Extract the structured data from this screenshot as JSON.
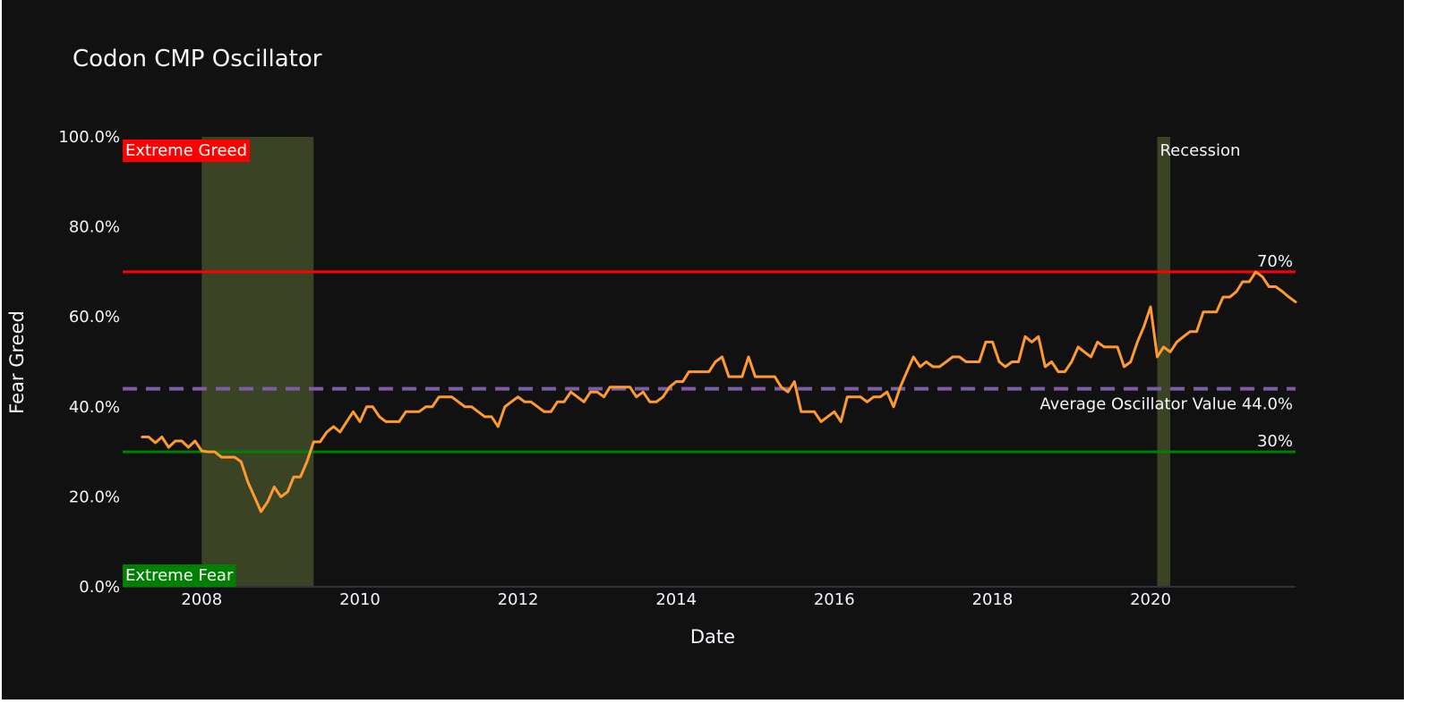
{
  "chart_data": {
    "type": "line",
    "title": "Codon CMP Oscillator",
    "xlabel": "Date",
    "ylabel": "Fear Greed",
    "x_range": [
      "2007-01-01",
      "2021-11-01"
    ],
    "ylim": [
      0,
      100
    ],
    "y_ticks": [
      0,
      20,
      40,
      60,
      80,
      100
    ],
    "y_tick_labels": [
      "0.0%",
      "20.0%",
      "40.0%",
      "60.0%",
      "80.0%",
      "100.0%"
    ],
    "x_ticks": [
      "2008-01-01",
      "2010-01-01",
      "2012-01-01",
      "2014-01-01",
      "2016-01-01",
      "2018-01-01",
      "2020-01-01"
    ],
    "x_tick_labels": [
      "2008",
      "2010",
      "2012",
      "2014",
      "2016",
      "2018",
      "2020"
    ],
    "grid": false,
    "series": [
      {
        "color": "#ff9a2e",
        "x": [
          "2007-04-01",
          "2007-05-01",
          "2007-06-01",
          "2007-07-01",
          "2007-08-01",
          "2007-09-01",
          "2007-10-01",
          "2007-11-01",
          "2007-12-01",
          "2008-01-01",
          "2008-02-01",
          "2008-03-01",
          "2008-04-01",
          "2008-05-01",
          "2008-06-01",
          "2008-07-01",
          "2008-08-01",
          "2008-09-01",
          "2008-10-01",
          "2008-11-01",
          "2008-12-01",
          "2009-01-01",
          "2009-02-01",
          "2009-03-01",
          "2009-04-01",
          "2009-05-01",
          "2009-06-01",
          "2009-07-01",
          "2009-08-01",
          "2009-09-01",
          "2009-10-01",
          "2009-11-01",
          "2009-12-01",
          "2010-01-01",
          "2010-02-01",
          "2010-03-01",
          "2010-04-01",
          "2010-05-01",
          "2010-06-01",
          "2010-07-01",
          "2010-08-01",
          "2010-09-01",
          "2010-10-01",
          "2010-11-01",
          "2010-12-01",
          "2011-01-01",
          "2011-02-01",
          "2011-03-01",
          "2011-04-01",
          "2011-05-01",
          "2011-06-01",
          "2011-07-01",
          "2011-08-01",
          "2011-09-01",
          "2011-10-01",
          "2011-11-01",
          "2011-12-01",
          "2012-01-01",
          "2012-02-01",
          "2012-03-01",
          "2012-04-01",
          "2012-05-01",
          "2012-06-01",
          "2012-07-01",
          "2012-08-01",
          "2012-09-01",
          "2012-10-01",
          "2012-11-01",
          "2012-12-01",
          "2013-01-01",
          "2013-02-01",
          "2013-03-01",
          "2013-04-01",
          "2013-05-01",
          "2013-06-01",
          "2013-07-01",
          "2013-08-01",
          "2013-09-01",
          "2013-10-01",
          "2013-11-01",
          "2013-12-01",
          "2014-01-01",
          "2014-02-01",
          "2014-03-01",
          "2014-04-01",
          "2014-05-01",
          "2014-06-01",
          "2014-07-01",
          "2014-08-01",
          "2014-09-01",
          "2014-10-01",
          "2014-11-01",
          "2014-12-01",
          "2015-01-01",
          "2015-02-01",
          "2015-03-01",
          "2015-04-01",
          "2015-05-01",
          "2015-06-01",
          "2015-07-01",
          "2015-08-01",
          "2015-09-01",
          "2015-10-01",
          "2015-11-01",
          "2015-12-01",
          "2016-01-01",
          "2016-02-01",
          "2016-03-01",
          "2016-04-01",
          "2016-05-01",
          "2016-06-01",
          "2016-07-01",
          "2016-08-01",
          "2016-09-01",
          "2016-10-01",
          "2016-11-01",
          "2016-12-01",
          "2017-01-01",
          "2017-02-01",
          "2017-03-01",
          "2017-04-01",
          "2017-05-01",
          "2017-06-01",
          "2017-07-01",
          "2017-08-01",
          "2017-09-01",
          "2017-10-01",
          "2017-11-01",
          "2017-12-01",
          "2018-01-01",
          "2018-02-01",
          "2018-03-01",
          "2018-04-01",
          "2018-05-01",
          "2018-06-01",
          "2018-07-01",
          "2018-08-01",
          "2018-09-01",
          "2018-10-01",
          "2018-11-01",
          "2018-12-01",
          "2019-01-01",
          "2019-02-01",
          "2019-03-01",
          "2019-04-01",
          "2019-05-01",
          "2019-06-01",
          "2019-07-01",
          "2019-08-01",
          "2019-09-01",
          "2019-10-01",
          "2019-11-01",
          "2019-12-01",
          "2020-01-01",
          "2020-02-01",
          "2020-03-01",
          "2020-04-01",
          "2020-05-01",
          "2020-06-01",
          "2020-07-01",
          "2020-08-01",
          "2020-09-01",
          "2020-10-01",
          "2020-11-01",
          "2020-12-01",
          "2021-01-01",
          "2021-02-01",
          "2021-03-01",
          "2021-04-01",
          "2021-05-01",
          "2021-06-01",
          "2021-07-01",
          "2021-08-01",
          "2021-09-01",
          "2021-10-01",
          "2021-11-01"
        ],
        "y": [
          33.3,
          33.3,
          32.0,
          33.3,
          31.0,
          32.4,
          32.4,
          31.0,
          32.4,
          30.2,
          30.0,
          30.0,
          28.8,
          28.8,
          28.8,
          27.8,
          23.3,
          20.0,
          16.7,
          18.9,
          22.2,
          20.0,
          21.1,
          24.4,
          24.4,
          27.8,
          32.2,
          32.2,
          34.4,
          35.6,
          34.4,
          36.7,
          38.9,
          36.7,
          40.0,
          40.0,
          37.8,
          36.7,
          36.7,
          36.7,
          38.9,
          38.9,
          38.9,
          40.0,
          40.0,
          42.2,
          42.2,
          42.2,
          41.1,
          40.0,
          40.0,
          38.9,
          37.8,
          37.8,
          35.6,
          40.0,
          41.1,
          42.2,
          41.1,
          41.1,
          40.0,
          38.9,
          38.9,
          41.1,
          41.1,
          43.3,
          42.2,
          41.1,
          43.3,
          43.3,
          42.2,
          44.4,
          44.4,
          44.4,
          44.4,
          42.2,
          43.3,
          41.1,
          41.1,
          42.2,
          44.4,
          45.6,
          45.6,
          47.8,
          47.8,
          47.8,
          47.8,
          50.0,
          51.1,
          46.7,
          46.7,
          46.7,
          51.1,
          46.7,
          46.7,
          46.7,
          46.7,
          44.4,
          43.3,
          45.6,
          38.9,
          38.9,
          38.9,
          36.7,
          37.8,
          38.9,
          36.7,
          42.2,
          42.2,
          42.2,
          41.1,
          42.2,
          42.2,
          43.3,
          40.0,
          44.4,
          47.8,
          51.1,
          48.9,
          50.0,
          48.9,
          48.9,
          50.0,
          51.1,
          51.1,
          50.0,
          50.0,
          50.0,
          54.4,
          54.4,
          50.0,
          48.9,
          50.0,
          50.0,
          55.6,
          54.4,
          55.6,
          48.9,
          50.0,
          47.8,
          47.8,
          50.0,
          53.3,
          52.2,
          51.1,
          54.4,
          53.3,
          53.3,
          53.3,
          48.9,
          50.0,
          54.4,
          57.8,
          62.2,
          51.1,
          53.3,
          52.2,
          54.4,
          55.6,
          56.7,
          56.7,
          61.1,
          61.1,
          61.1,
          64.4,
          64.4,
          65.6,
          67.8,
          67.8,
          70.0,
          68.9,
          66.7,
          66.7,
          65.6,
          64.4,
          63.3
        ]
      }
    ],
    "reference_lines": [
      {
        "y": 70,
        "label": "70%",
        "color": "#ff0000",
        "style": "solid"
      },
      {
        "y": 30,
        "label": "30%",
        "color": "#008000",
        "style": "solid"
      },
      {
        "y": 44,
        "label": "Average Oscillator Value 44.0%",
        "color": "#7b5ea7",
        "style": "dashed"
      }
    ],
    "shaded_regions": [
      {
        "x0": "2008-01-01",
        "x1": "2009-06-01",
        "color": "#4b5a2d"
      },
      {
        "x0": "2020-02-01",
        "x1": "2020-04-01",
        "color": "#4b5a2d",
        "label": "Recession"
      }
    ],
    "zone_labels": {
      "top": {
        "text": "Extreme Greed",
        "color": "#ff0000"
      },
      "bottom": {
        "text": "Extreme Fear",
        "color": "#008000"
      }
    },
    "colors": {
      "background": "#111111",
      "text": "#f2f5fa",
      "zeroline": "#283442"
    }
  }
}
